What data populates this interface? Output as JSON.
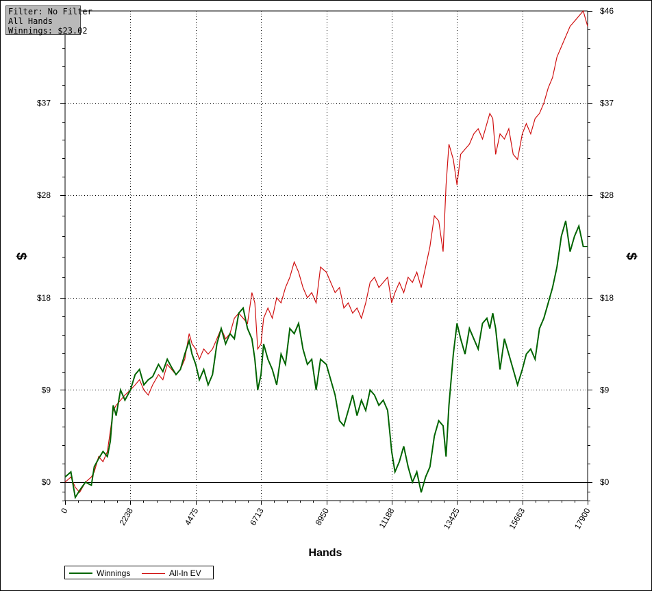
{
  "info_box": {
    "filter": "Filter: No Filter",
    "hands": "All Hands",
    "winnings": "Winnings: $23.02"
  },
  "chart_data": {
    "type": "line",
    "xlabel": "Hands",
    "ylabel": "$",
    "ylabel_right": "$",
    "xlim": [
      0,
      17900
    ],
    "ylim": [
      -1.8,
      46
    ],
    "x_ticks": [
      0,
      2238,
      4475,
      6713,
      8950,
      11188,
      13425,
      15663,
      17900
    ],
    "x_tick_labels": [
      "0",
      "2238",
      "4475",
      "6713",
      "8950",
      "11188",
      "13425",
      "15663",
      "17900"
    ],
    "y_ticks": [
      0,
      9,
      18,
      28,
      37,
      46
    ],
    "y_tick_labels": [
      "$0",
      "$9",
      "$18",
      "$28",
      "$37",
      "$46"
    ],
    "grid": true,
    "legend_position": "bottom-left",
    "series": [
      {
        "name": "Winnings",
        "color": "#006400",
        "x": [
          0,
          200,
          350,
          500,
          700,
          900,
          1000,
          1150,
          1300,
          1450,
          1550,
          1650,
          1750,
          1900,
          2050,
          2238,
          2400,
          2550,
          2700,
          2850,
          3000,
          3200,
          3350,
          3500,
          3650,
          3800,
          3950,
          4100,
          4250,
          4350,
          4475,
          4600,
          4750,
          4900,
          5050,
          5200,
          5350,
          5500,
          5650,
          5800,
          5950,
          6100,
          6250,
          6400,
          6500,
          6600,
          6713,
          6800,
          6950,
          7100,
          7250,
          7400,
          7550,
          7700,
          7850,
          8000,
          8150,
          8300,
          8450,
          8600,
          8750,
          8950,
          9100,
          9250,
          9400,
          9550,
          9700,
          9850,
          10000,
          10150,
          10300,
          10450,
          10600,
          10750,
          10900,
          11050,
          11188,
          11300,
          11450,
          11600,
          11750,
          11900,
          12050,
          12200,
          12350,
          12500,
          12650,
          12800,
          12950,
          13050,
          13150,
          13300,
          13425,
          13550,
          13700,
          13850,
          14000,
          14150,
          14300,
          14450,
          14550,
          14650,
          14750,
          14900,
          15050,
          15200,
          15350,
          15500,
          15663,
          15800,
          15950,
          16100,
          16250,
          16400,
          16550,
          16700,
          16850,
          17000,
          17150,
          17300,
          17450,
          17600,
          17750,
          17900
        ],
        "values": [
          0.5,
          1.0,
          -1.5,
          -0.8,
          0.0,
          -0.3,
          1.5,
          2.3,
          3.0,
          2.5,
          4.0,
          7.5,
          6.5,
          9.0,
          8.0,
          9.0,
          10.5,
          11.0,
          9.5,
          10.0,
          10.3,
          11.5,
          10.8,
          12.0,
          11.2,
          10.5,
          11.0,
          12.5,
          13.8,
          12.5,
          11.5,
          10.0,
          11.0,
          9.5,
          10.5,
          13.5,
          15.0,
          13.5,
          14.5,
          14.0,
          16.5,
          17.0,
          15.0,
          14.0,
          12.0,
          9.0,
          10.5,
          13.5,
          12.0,
          11.0,
          9.5,
          12.5,
          11.5,
          15.0,
          14.5,
          15.5,
          13.0,
          11.5,
          12.0,
          9.0,
          12.0,
          11.5,
          10.0,
          8.5,
          6.0,
          5.5,
          7.0,
          8.5,
          6.5,
          8.0,
          7.0,
          9.0,
          8.5,
          7.5,
          8.0,
          7.0,
          3.0,
          1.0,
          2.0,
          3.5,
          1.5,
          0.0,
          1.0,
          -1.0,
          0.5,
          1.5,
          4.5,
          6.0,
          5.5,
          2.5,
          7.5,
          12.5,
          15.5,
          14.0,
          12.5,
          15.0,
          14.0,
          13.0,
          15.5,
          16.0,
          15.0,
          16.5,
          15.0,
          11.0,
          14.0,
          12.5,
          11.0,
          9.5,
          11.0,
          12.5,
          13.0,
          12.0,
          15.0,
          16.0,
          17.5,
          19.0,
          21.0,
          24.0,
          25.5,
          22.5,
          24.0,
          25.0,
          23.0,
          23.0
        ],
        "final": 23.02
      },
      {
        "name": "All-In EV",
        "color": "#d01010",
        "x": [
          0,
          200,
          350,
          500,
          700,
          900,
          1000,
          1150,
          1300,
          1450,
          1550,
          1650,
          1750,
          1900,
          2050,
          2238,
          2400,
          2550,
          2700,
          2850,
          3000,
          3200,
          3350,
          3500,
          3650,
          3800,
          3950,
          4100,
          4250,
          4350,
          4475,
          4600,
          4750,
          4900,
          5050,
          5200,
          5350,
          5500,
          5650,
          5800,
          5950,
          6100,
          6250,
          6400,
          6500,
          6600,
          6713,
          6800,
          6950,
          7100,
          7250,
          7400,
          7550,
          7700,
          7850,
          8000,
          8150,
          8300,
          8450,
          8600,
          8750,
          8950,
          9100,
          9250,
          9400,
          9550,
          9700,
          9850,
          10000,
          10150,
          10300,
          10450,
          10600,
          10750,
          10900,
          11050,
          11188,
          11300,
          11450,
          11600,
          11750,
          11900,
          12050,
          12200,
          12350,
          12500,
          12650,
          12800,
          12950,
          13050,
          13150,
          13300,
          13425,
          13550,
          13700,
          13850,
          14000,
          14150,
          14300,
          14450,
          14550,
          14650,
          14750,
          14900,
          15050,
          15200,
          15350,
          15500,
          15663,
          15800,
          15950,
          16100,
          16250,
          16400,
          16550,
          16700,
          16850,
          17000,
          17150,
          17300,
          17450,
          17600,
          17750,
          17900
        ],
        "values": [
          0.0,
          0.5,
          -0.5,
          -1.0,
          0.0,
          0.5,
          1.0,
          2.5,
          2.0,
          3.0,
          5.0,
          7.0,
          7.5,
          8.0,
          8.5,
          9.0,
          9.5,
          10.0,
          9.0,
          8.5,
          9.5,
          10.5,
          10.0,
          11.5,
          11.0,
          10.5,
          11.0,
          12.0,
          14.5,
          13.5,
          13.0,
          12.0,
          13.0,
          12.5,
          13.0,
          14.0,
          15.0,
          14.0,
          14.5,
          16.0,
          16.5,
          16.0,
          15.5,
          18.5,
          17.5,
          13.0,
          13.5,
          16.0,
          17.0,
          16.0,
          18.0,
          17.5,
          19.0,
          20.0,
          21.5,
          20.5,
          19.0,
          18.0,
          18.5,
          17.5,
          21.0,
          20.5,
          19.5,
          18.5,
          19.0,
          17.0,
          17.5,
          16.5,
          17.0,
          16.0,
          17.5,
          19.5,
          20.0,
          19.0,
          19.5,
          20.0,
          17.5,
          18.5,
          19.5,
          18.5,
          20.0,
          19.5,
          20.5,
          19.0,
          21.0,
          23.0,
          26.0,
          25.5,
          22.5,
          29.0,
          33.0,
          31.5,
          29.0,
          32.0,
          32.5,
          33.0,
          34.0,
          34.5,
          33.5,
          35.0,
          36.0,
          35.5,
          32.0,
          34.0,
          33.5,
          34.5,
          32.0,
          31.5,
          34.0,
          35.0,
          34.0,
          35.5,
          36.0,
          37.0,
          38.5,
          39.5,
          41.5,
          42.5,
          43.5,
          44.5,
          45.0,
          45.5,
          46.0,
          44.5
        ],
        "final": 44.5
      }
    ]
  },
  "legend": {
    "winnings_label": "Winnings",
    "allin_label": "All-In EV",
    "winnings_color": "#006400",
    "allin_color": "#d01010"
  }
}
